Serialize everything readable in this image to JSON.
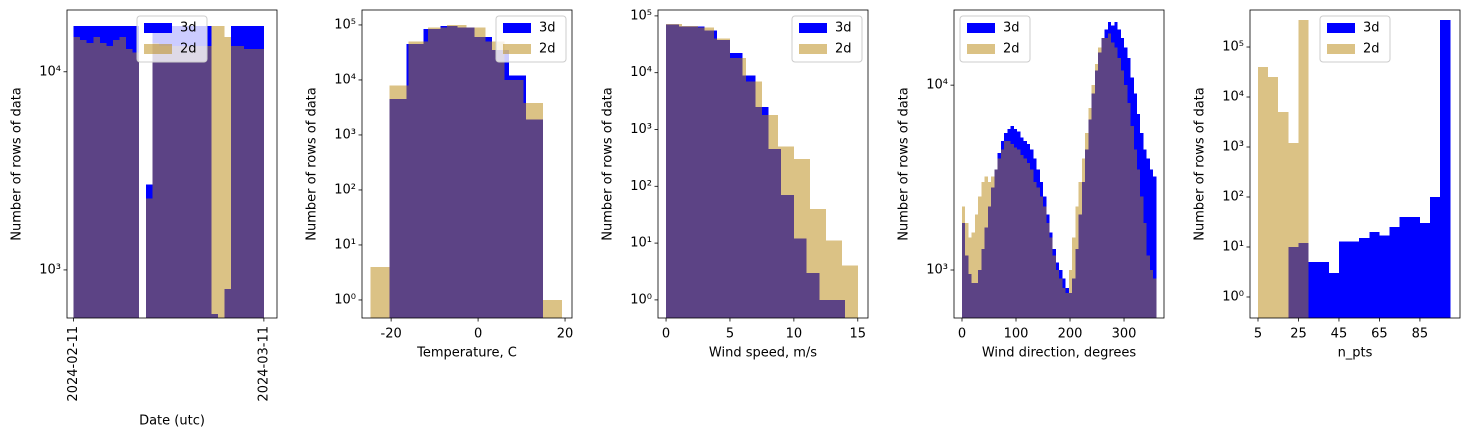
{
  "chart_data": [
    {
      "type": "histogram",
      "xlabel": "Date (utc)",
      "ylabel": "Number of rows of data",
      "ylog": true,
      "legend": "upper center",
      "xlim": [
        "2024-02-10",
        "2024-03-13"
      ],
      "xticks": [
        "2024-02-11",
        "2024-03-11"
      ],
      "ylim": [
        572,
        20500
      ],
      "yticks": [
        {
          "value": 1000,
          "label": "10³"
        },
        {
          "value": 10000,
          "label": "10⁴"
        }
      ],
      "series": [
        {
          "name": "3d",
          "color": "#0000ff",
          "alpha": 1,
          "bins": [
            "2024-02-11",
            "2024-02-12",
            "2024-02-13",
            "2024-02-14",
            "2024-02-15",
            "2024-02-16",
            "2024-02-17",
            "2024-02-18",
            "2024-02-19",
            "2024-02-20",
            "2024-02-21",
            "2024-02-22",
            "2024-02-23",
            "2024-02-24",
            "2024-02-25",
            "2024-02-26",
            "2024-02-27",
            "2024-02-28",
            "2024-02-29",
            "2024-03-01",
            "2024-03-02",
            "2024-03-03",
            "2024-03-04",
            "2024-03-05",
            "2024-03-06",
            "2024-03-07",
            "2024-03-08",
            "2024-03-09",
            "2024-03-10",
            "2024-03-11"
          ],
          "values": [
            17000,
            17000,
            17000,
            17000,
            17000,
            17000,
            17000,
            17000,
            17000,
            17000,
            0,
            2700,
            17000,
            17000,
            17000,
            17000,
            17000,
            17000,
            17000,
            17000,
            17000,
            600,
            0,
            800,
            17000,
            17000,
            17000,
            17000,
            17000
          ]
        },
        {
          "name": "2d",
          "color": "#b8860b",
          "alpha": 0.5,
          "bins": [
            "2024-02-11",
            "2024-02-12",
            "2024-02-13",
            "2024-02-14",
            "2024-02-15",
            "2024-02-16",
            "2024-02-17",
            "2024-02-18",
            "2024-02-19",
            "2024-02-20",
            "2024-02-21",
            "2024-02-22",
            "2024-02-23",
            "2024-02-24",
            "2024-02-25",
            "2024-02-26",
            "2024-02-27",
            "2024-02-28",
            "2024-02-29",
            "2024-03-01",
            "2024-03-02",
            "2024-03-03",
            "2024-03-04",
            "2024-03-05",
            "2024-03-06",
            "2024-03-07",
            "2024-03-08",
            "2024-03-09",
            "2024-03-10",
            "2024-03-11"
          ],
          "values": [
            15000,
            14500,
            14000,
            15000,
            14000,
            13500,
            14500,
            15000,
            13000,
            12500,
            0,
            2300,
            14000,
            13500,
            13500,
            13500,
            13500,
            13500,
            13500,
            13500,
            13500,
            17000,
            17000,
            15000,
            13500,
            13500,
            13000,
            13000,
            13000
          ]
        }
      ]
    },
    {
      "type": "histogram",
      "xlabel": "Temperature, C",
      "ylabel": "Number of rows of data",
      "ylog": true,
      "legend": "upper right",
      "xlim": [
        -26.7,
        21.6
      ],
      "xticks": [
        -20,
        0,
        20
      ],
      "ylim": [
        0.47,
        187000
      ],
      "yticks": [
        {
          "value": 1,
          "label": "10⁰"
        },
        {
          "value": 10,
          "label": "10¹"
        },
        {
          "value": 100,
          "label": "10²"
        },
        {
          "value": 1000,
          "label": "10³"
        },
        {
          "value": 10000,
          "label": "10⁴"
        },
        {
          "value": 100000,
          "label": "10⁵"
        }
      ],
      "series": [
        {
          "name": "3d",
          "color": "#0000ff",
          "alpha": 1,
          "bins": [
            -20.4,
            -16.5,
            -12.6,
            -8.6,
            -4.7,
            -0.8,
            3.2,
            7.1,
            11.0,
            14.9
          ],
          "values": [
            4500,
            45000,
            85000,
            95000,
            90000,
            60000,
            35000,
            12000,
            1900
          ]
        },
        {
          "name": "2d",
          "color": "#b8860b",
          "alpha": 0.5,
          "bins": [
            -24.8,
            -20.4,
            -16.0,
            -11.5,
            -7.1,
            -2.7,
            1.7,
            6.1,
            10.5,
            14.9,
            19.3
          ],
          "values": [
            4,
            8000,
            50000,
            90000,
            100000,
            90000,
            50000,
            10000,
            3800,
            1
          ]
        }
      ]
    },
    {
      "type": "histogram",
      "xlabel": "Wind speed, m/s",
      "ylabel": "Number of rows of data",
      "ylog": true,
      "legend": "upper right",
      "xlim": [
        -0.63,
        15.8
      ],
      "xticks": [
        0,
        5,
        10,
        15
      ],
      "ylim": [
        0.48,
        127000
      ],
      "yticks": [
        {
          "value": 1,
          "label": "10⁰"
        },
        {
          "value": 10,
          "label": "10¹"
        },
        {
          "value": 100,
          "label": "10²"
        },
        {
          "value": 1000,
          "label": "10³"
        },
        {
          "value": 10000,
          "label": "10⁴"
        },
        {
          "value": 100000,
          "label": "10⁵"
        }
      ],
      "series": [
        {
          "name": "3d",
          "color": "#0000ff",
          "alpha": 1,
          "bins": [
            0,
            1,
            2,
            3,
            4,
            5,
            6,
            7,
            8,
            9,
            10,
            11,
            12,
            13,
            14
          ],
          "values": [
            70000,
            65000,
            65000,
            55000,
            38000,
            22000,
            9000,
            2500,
            450,
            70,
            12,
            3,
            1,
            1
          ]
        },
        {
          "name": "2d",
          "color": "#b8860b",
          "alpha": 0.5,
          "bins": [
            0,
            1.25,
            2.5,
            3.75,
            5,
            6.25,
            7.5,
            8.75,
            10,
            11.25,
            12.5,
            13.75,
            15
          ],
          "values": [
            72000,
            66000,
            62000,
            40000,
            18000,
            7000,
            1800,
            500,
            300,
            40,
            11,
            4
          ]
        }
      ]
    },
    {
      "type": "histogram",
      "xlabel": "Wind direction, degrees",
      "ylabel": "Number of rows of data",
      "ylog": true,
      "legend": "upper left",
      "xlim": [
        -14.8,
        374
      ],
      "xticks": [
        0,
        100,
        200,
        300
      ],
      "ylim": [
        550,
        25500
      ],
      "yticks": [
        {
          "value": 1000,
          "label": "10³"
        },
        {
          "value": 10000,
          "label": "10⁴"
        }
      ],
      "series": [
        {
          "name": "3d",
          "color": "#0000ff",
          "alpha": 1,
          "bins": [
            0,
            6,
            12,
            18,
            24,
            30,
            36,
            42,
            48,
            54,
            60,
            66,
            72,
            78,
            84,
            90,
            96,
            102,
            108,
            114,
            120,
            126,
            132,
            138,
            144,
            150,
            156,
            162,
            168,
            174,
            180,
            186,
            192,
            198,
            204,
            210,
            216,
            222,
            228,
            234,
            240,
            246,
            252,
            258,
            264,
            270,
            276,
            282,
            288,
            294,
            300,
            306,
            312,
            318,
            324,
            330,
            336,
            342,
            348,
            354,
            360
          ],
          "values": [
            1800,
            1200,
            950,
            850,
            850,
            1000,
            1300,
            1700,
            2200,
            2800,
            3500,
            4300,
            5000,
            5500,
            5800,
            6000,
            5800,
            5600,
            5200,
            5000,
            4800,
            4500,
            4000,
            3500,
            3000,
            2500,
            2000,
            1600,
            1300,
            1100,
            1000,
            900,
            800,
            750,
            900,
            1300,
            2000,
            3000,
            4500,
            6500,
            9000,
            12000,
            15000,
            18000,
            20000,
            22000,
            21000,
            22000,
            20000,
            18000,
            16000,
            14000,
            11000,
            9000,
            7000,
            5500,
            4500,
            4000,
            3500,
            3200
          ]
        },
        {
          "name": "2d",
          "color": "#b8860b",
          "alpha": 0.5,
          "bins": [
            0,
            6,
            12,
            18,
            24,
            30,
            36,
            42,
            48,
            54,
            60,
            66,
            72,
            78,
            84,
            90,
            96,
            102,
            108,
            114,
            120,
            126,
            132,
            138,
            144,
            150,
            156,
            162,
            168,
            174,
            180,
            186,
            192,
            198,
            204,
            210,
            216,
            222,
            228,
            234,
            240,
            246,
            252,
            258,
            264,
            270,
            276,
            282,
            288,
            294,
            300,
            306,
            312,
            318,
            324,
            330,
            336,
            342,
            348,
            354,
            360
          ],
          "values": [
            2200,
            1800,
            1500,
            1600,
            2000,
            2500,
            3000,
            3200,
            3000,
            3200,
            3500,
            4000,
            4500,
            5000,
            5000,
            4800,
            4600,
            4500,
            4200,
            4000,
            3800,
            3500,
            3000,
            2800,
            2500,
            2200,
            1800,
            1500,
            1200,
            1000,
            900,
            800,
            750,
            1000,
            1500,
            2200,
            3000,
            4000,
            5500,
            7500,
            10000,
            13000,
            16000,
            18000,
            18000,
            19000,
            17000,
            16000,
            14000,
            12000,
            10000,
            8000,
            6000,
            4500,
            3500,
            2500,
            1800,
            1200,
            1000,
            900
          ]
        }
      ]
    },
    {
      "type": "histogram",
      "xlabel": "n_pts",
      "ylabel": "Number of rows of data",
      "ylog": true,
      "legend": "upper center",
      "xlim": [
        1.05,
        104.8
      ],
      "xticks": [
        5,
        25,
        45,
        65,
        85
      ],
      "ylim": [
        0.38,
        550000
      ],
      "yticks": [
        {
          "value": 1,
          "label": "10⁰"
        },
        {
          "value": 10,
          "label": "10¹"
        },
        {
          "value": 100,
          "label": "10²"
        },
        {
          "value": 1000,
          "label": "10³"
        },
        {
          "value": 10000,
          "label": "10⁴"
        },
        {
          "value": 100000,
          "label": "10⁵"
        }
      ],
      "series": [
        {
          "name": "3d",
          "color": "#0000ff",
          "alpha": 1,
          "bins": [
            20,
            25,
            30,
            35,
            40,
            45,
            50,
            55,
            60,
            65,
            70,
            75,
            80,
            85,
            90,
            95,
            100
          ],
          "values": [
            10,
            12,
            5,
            5,
            3,
            13,
            13,
            15,
            20,
            17,
            25,
            40,
            40,
            30,
            100,
            350000
          ]
        },
        {
          "name": "2d",
          "color": "#b8860b",
          "alpha": 0.5,
          "bins": [
            5,
            10,
            15,
            20,
            25,
            30
          ],
          "values": [
            40000,
            25000,
            5000,
            1200,
            350000
          ]
        }
      ]
    }
  ]
}
